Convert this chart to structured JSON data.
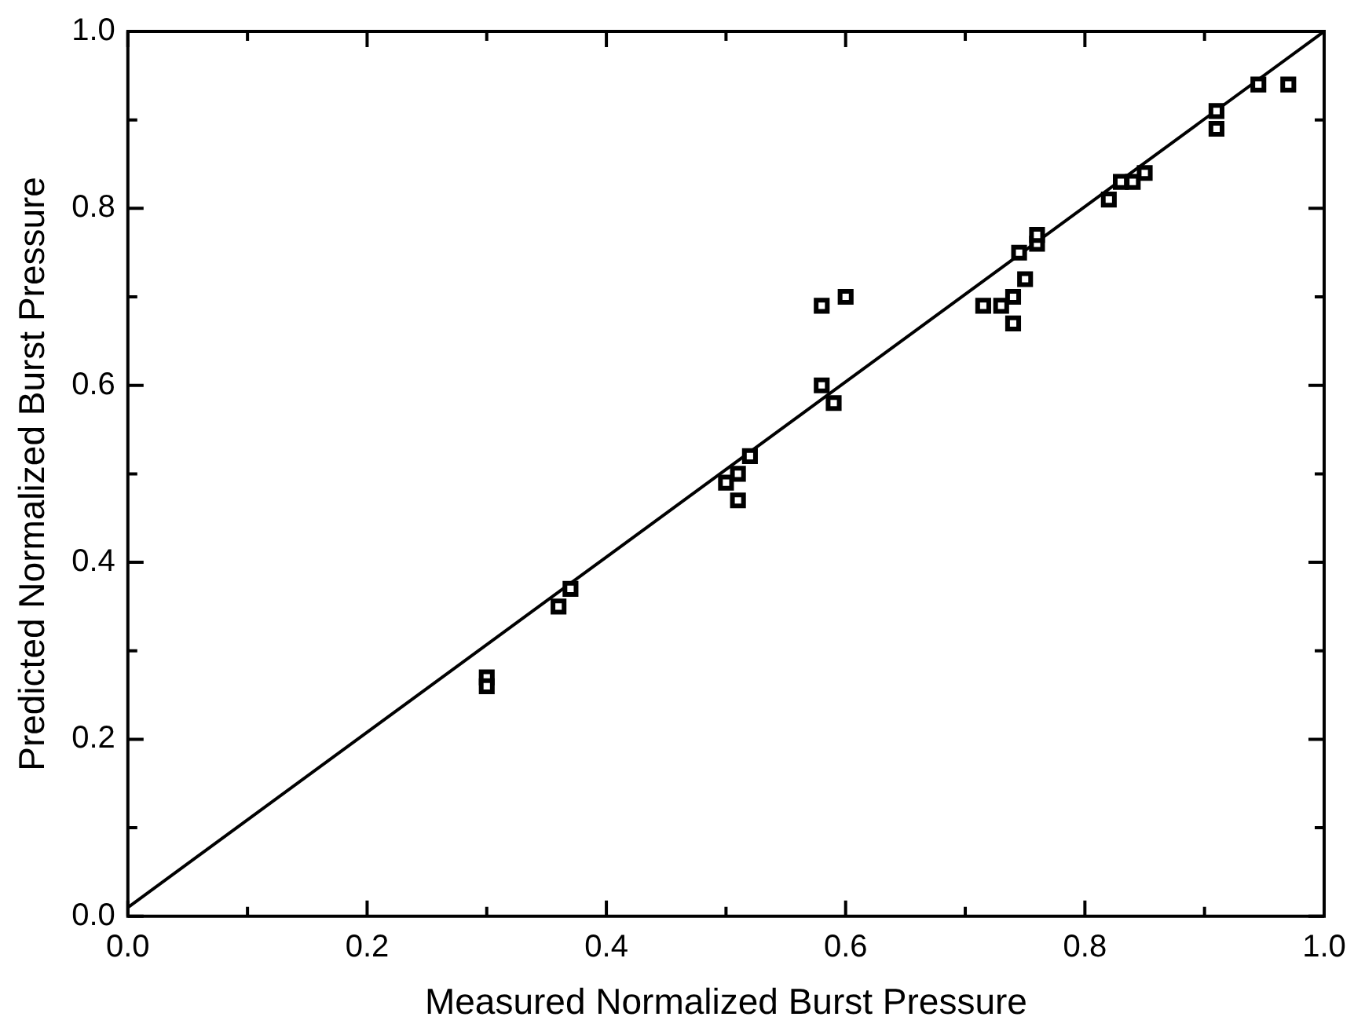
{
  "chart_data": {
    "type": "scatter",
    "xlabel": "Measured Normalized Burst Pressure",
    "ylabel": "Predicted Normalized Burst Pressure",
    "xlim": [
      0,
      1
    ],
    "ylim": [
      0,
      1
    ],
    "xticks": [
      {
        "value": 0,
        "label": "0.0"
      },
      {
        "value": 0.1,
        "label": null
      },
      {
        "value": 0.2,
        "label": "0.2"
      },
      {
        "value": 0.3,
        "label": null
      },
      {
        "value": 0.4,
        "label": "0.4"
      },
      {
        "value": 0.5,
        "label": null
      },
      {
        "value": 0.6,
        "label": "0.6"
      },
      {
        "value": 0.7,
        "label": null
      },
      {
        "value": 0.8,
        "label": "0.8"
      },
      {
        "value": 0.9,
        "label": null
      },
      {
        "value": 1,
        "label": "1.0"
      }
    ],
    "yticks": [
      {
        "value": 0,
        "label": "0.0"
      },
      {
        "value": 0.1,
        "label": null
      },
      {
        "value": 0.2,
        "label": "0.2"
      },
      {
        "value": 0.3,
        "label": null
      },
      {
        "value": 0.4,
        "label": "0.4"
      },
      {
        "value": 0.5,
        "label": null
      },
      {
        "value": 0.6,
        "label": "0.6"
      },
      {
        "value": 0.7,
        "label": null
      },
      {
        "value": 0.8,
        "label": "0.8"
      },
      {
        "value": 0.9,
        "label": null
      },
      {
        "value": 1,
        "label": "1.0"
      }
    ],
    "grid": false,
    "series": [
      {
        "type": "scatter",
        "marker": "square",
        "color": "#000000",
        "x": [
          0.3,
          0.3,
          0.36,
          0.37,
          0.5,
          0.51,
          0.51,
          0.52,
          0.58,
          0.59,
          0.58,
          0.6,
          0.715,
          0.73,
          0.74,
          0.74,
          0.75,
          0.745,
          0.76,
          0.76,
          0.82,
          0.83,
          0.84,
          0.85,
          0.91,
          0.91,
          0.945,
          0.97
        ],
        "values": [
          0.27,
          0.26,
          0.35,
          0.37,
          0.49,
          0.5,
          0.47,
          0.52,
          0.6,
          0.58,
          0.69,
          0.7,
          0.69,
          0.69,
          0.7,
          0.67,
          0.72,
          0.75,
          0.76,
          0.77,
          0.81,
          0.83,
          0.83,
          0.84,
          0.89,
          0.91,
          0.94,
          0.94
        ]
      },
      {
        "type": "line",
        "marker": "none",
        "color": "#000000",
        "x": [
          0,
          1
        ],
        "values": [
          0.01,
          1
        ]
      }
    ]
  }
}
